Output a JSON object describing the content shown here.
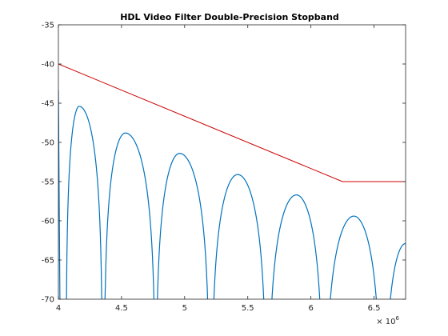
{
  "chart_data": {
    "type": "line",
    "title": "HDL Video Filter Double-Precision Stopband",
    "xlabel": "",
    "ylabel": "",
    "x_exponent_label": "× 10",
    "x_exponent_power": "6",
    "xlim": [
      4.0,
      6.75
    ],
    "ylim": [
      -70,
      -35
    ],
    "x_tick_values": [
      4,
      4.5,
      5,
      5.5,
      6,
      6.5
    ],
    "x_tick_labels": [
      "4",
      "4.5",
      "5",
      "5.5",
      "6",
      "6.5"
    ],
    "y_tick_values": [
      -35,
      -40,
      -45,
      -50,
      -55,
      -60,
      -65,
      -70
    ],
    "y_tick_labels": [
      "-35",
      "-40",
      "-45",
      "-50",
      "-55",
      "-60",
      "-65",
      "-70"
    ],
    "grid": false,
    "series": [
      {
        "color": "#cc0000",
        "x": [
          4.0,
          6.25,
          6.75
        ],
        "y": [
          -40,
          -55,
          -55
        ]
      },
      {
        "color": "#0072bd",
        "lobes": [
          {
            "start": 4.06,
            "peak_x": 4.165,
            "peak_y": -45.4,
            "end": 4.35
          },
          {
            "start": 4.36,
            "peak_x": 4.53,
            "peak_y": -48.8,
            "end": 4.77
          },
          {
            "start": 4.77,
            "peak_x": 4.96,
            "peak_y": -51.4,
            "end": 5.2
          },
          {
            "start": 5.21,
            "peak_x": 5.42,
            "peak_y": -54.1,
            "end": 5.65
          },
          {
            "start": 5.66,
            "peak_x": 5.885,
            "peak_y": -56.7,
            "end": 6.1
          },
          {
            "start": 6.11,
            "peak_x": 6.34,
            "peak_y": -59.4,
            "end": 6.56
          },
          {
            "start": 6.58,
            "peak_x": 6.75,
            "peak_y": -62.9,
            "end": 6.92
          }
        ],
        "left_edge": {
          "x": [
            4.0,
            4.012
          ],
          "y": [
            -43.3,
            -70
          ]
        }
      }
    ]
  }
}
